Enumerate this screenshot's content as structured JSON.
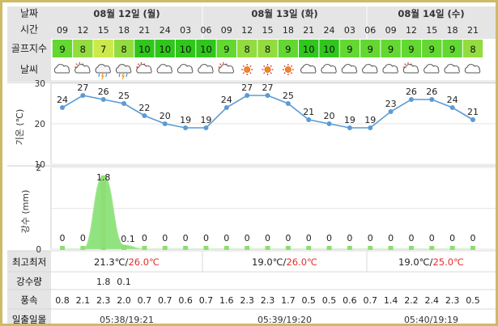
{
  "labels": {
    "date": "날짜",
    "time": "시간",
    "golf_index": "골프지수",
    "weather": "날씨",
    "min_max": "최고최저",
    "precip": "강수량",
    "wind": "풍속",
    "sun": "일출일몰"
  },
  "days": [
    {
      "label": "08월 12일 (월)",
      "minmax_prefix": "21.3℃/",
      "minmax_high": "26.0℃",
      "sun": "05:38/19:21"
    },
    {
      "label": "08월 13일 (화)",
      "minmax_prefix": "19.0℃/",
      "minmax_high": "26.0℃",
      "sun": "05:39/19:20"
    },
    {
      "label": "08월 14일 (수)",
      "minmax_prefix": "19.0℃/",
      "minmax_high": "25.0℃",
      "sun": "05:40/19:19"
    }
  ],
  "hours": [
    "09",
    "12",
    "15",
    "18",
    "21",
    "24",
    "03",
    "06",
    "09",
    "12",
    "15",
    "18",
    "21",
    "24",
    "03",
    "06",
    "09",
    "12",
    "15",
    "18",
    "21"
  ],
  "golf_index": [
    "9",
    "8",
    "7",
    "8",
    "10",
    "10",
    "10",
    "10",
    "9",
    "8",
    "8",
    "9",
    "10",
    "10",
    "9",
    "9",
    "9",
    "9",
    "9",
    "9",
    "8"
  ],
  "weather_icons": [
    "cloudy-icon",
    "sun-cloud-icon",
    "rain-lightning-icon",
    "rain-lightning-icon",
    "sun-cloud-icon",
    "cloudy-icon",
    "cloudy-icon",
    "cloudy-icon",
    "sun-cloud-icon",
    "sun-icon",
    "sun-icon",
    "sun-icon",
    "cloudy-icon",
    "cloudy-icon",
    "cloudy-icon",
    "cloudy-icon",
    "cloudy-icon",
    "sun-cloud-icon",
    "cloudy-icon",
    "cloudy-icon",
    "cloudy-icon"
  ],
  "precip_values": [
    "",
    "",
    "1.8",
    "0.1",
    "",
    "",
    "",
    "",
    "",
    "",
    "",
    "",
    "",
    "",
    "",
    "",
    "",
    "",
    "",
    "",
    ""
  ],
  "wind_values": [
    "0.8",
    "2.1",
    "2.3",
    "2.0",
    "0.7",
    "0.7",
    "0.6",
    "0.7",
    "1.6",
    "2.3",
    "2.3",
    "1.7",
    "0.5",
    "0.5",
    "0.6",
    "0.7",
    "1.4",
    "2.2",
    "2.4",
    "2.3",
    "0.5"
  ],
  "colors": {
    "header_bg": "#e5e5e5",
    "golf_7": "#cbe94b",
    "golf_8": "#93dc3f",
    "golf_9": "#62d831",
    "golf_10": "#2fc71b",
    "line": "#5b9bd5",
    "rain_fill": "#7ede6a",
    "rain_bar": "#8fdd74",
    "minmax_high": "#e0302a",
    "sunset": "#e0302a",
    "frame": "#cdbb66"
  },
  "chart_data": [
    {
      "type": "line",
      "ylabel": "기온 (℃)",
      "ylim": [
        10,
        30
      ],
      "yticks": [
        "10",
        "20",
        "30"
      ],
      "x": [
        "09",
        "12",
        "15",
        "18",
        "21",
        "24",
        "03",
        "06",
        "09",
        "12",
        "15",
        "18",
        "21",
        "24",
        "03",
        "06",
        "09",
        "12",
        "15",
        "18",
        "21"
      ],
      "values": [
        24,
        27,
        26,
        25,
        22,
        20,
        19,
        19,
        24,
        27,
        27,
        25,
        21,
        20,
        19,
        19,
        23,
        26,
        26,
        24,
        21
      ],
      "data_labels": [
        "24",
        "27",
        "26",
        "25",
        "22",
        "20",
        "19",
        "19",
        "24",
        "27",
        "27",
        "25",
        "21",
        "20",
        "19",
        "19",
        "23",
        "26",
        "26",
        "24",
        "21"
      ],
      "grid": true
    },
    {
      "type": "area",
      "ylabel": "강수 (mm)",
      "ylim": [
        0,
        2
      ],
      "yticks": [
        "0",
        "1",
        "2"
      ],
      "x": [
        "09",
        "12",
        "15",
        "18",
        "21",
        "24",
        "03",
        "06",
        "09",
        "12",
        "15",
        "18",
        "21",
        "24",
        "03",
        "06",
        "09",
        "12",
        "15",
        "18",
        "21"
      ],
      "values": [
        0,
        0,
        1.8,
        0.1,
        0,
        0,
        0,
        0,
        0,
        0,
        0,
        0,
        0,
        0,
        0,
        0,
        0,
        0,
        0,
        0,
        0
      ],
      "data_labels": [
        "0",
        "0",
        "1.8",
        "0.1",
        "0",
        "0",
        "0",
        "0",
        "0",
        "0",
        "0",
        "0",
        "0",
        "0",
        "0",
        "0",
        "0",
        "0",
        "0",
        "0",
        "0"
      ],
      "grid": true
    }
  ]
}
